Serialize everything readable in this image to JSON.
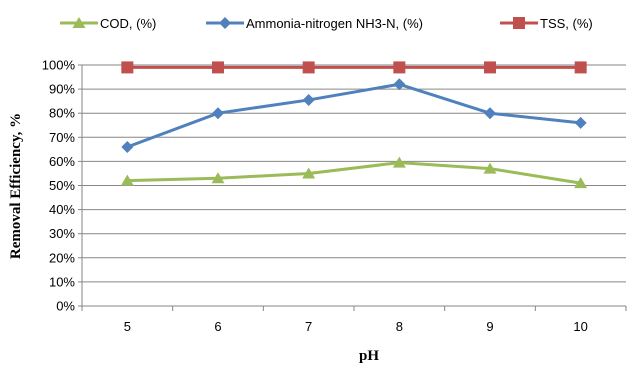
{
  "chart_data": {
    "type": "line",
    "xlabel": "pH",
    "ylabel": "Removal Efficiency, %",
    "categories": [
      "5",
      "6",
      "7",
      "8",
      "9",
      "10"
    ],
    "ylim": [
      0,
      100
    ],
    "ytick_values": [
      0,
      10,
      20,
      30,
      40,
      50,
      60,
      70,
      80,
      90,
      100
    ],
    "ytick_labels": [
      "0%",
      "10%",
      "20%",
      "30%",
      "40%",
      "50%",
      "60%",
      "70%",
      "80%",
      "90%",
      "100%"
    ],
    "grid": true,
    "legend_position": "top",
    "series": [
      {
        "name": "COD, (%)",
        "color": "#9bbb59",
        "marker": "triangle",
        "values": [
          52,
          53,
          55,
          59.5,
          57,
          51
        ]
      },
      {
        "name": "Ammonia-nitrogen NH3-N, (%)",
        "color": "#4f81bd",
        "marker": "diamond",
        "values": [
          66,
          80,
          85.5,
          92,
          80,
          76
        ]
      },
      {
        "name": "TSS, (%)",
        "color": "#c0504d",
        "marker": "square",
        "values": [
          99,
          99,
          99,
          99,
          99,
          99
        ]
      }
    ]
  }
}
